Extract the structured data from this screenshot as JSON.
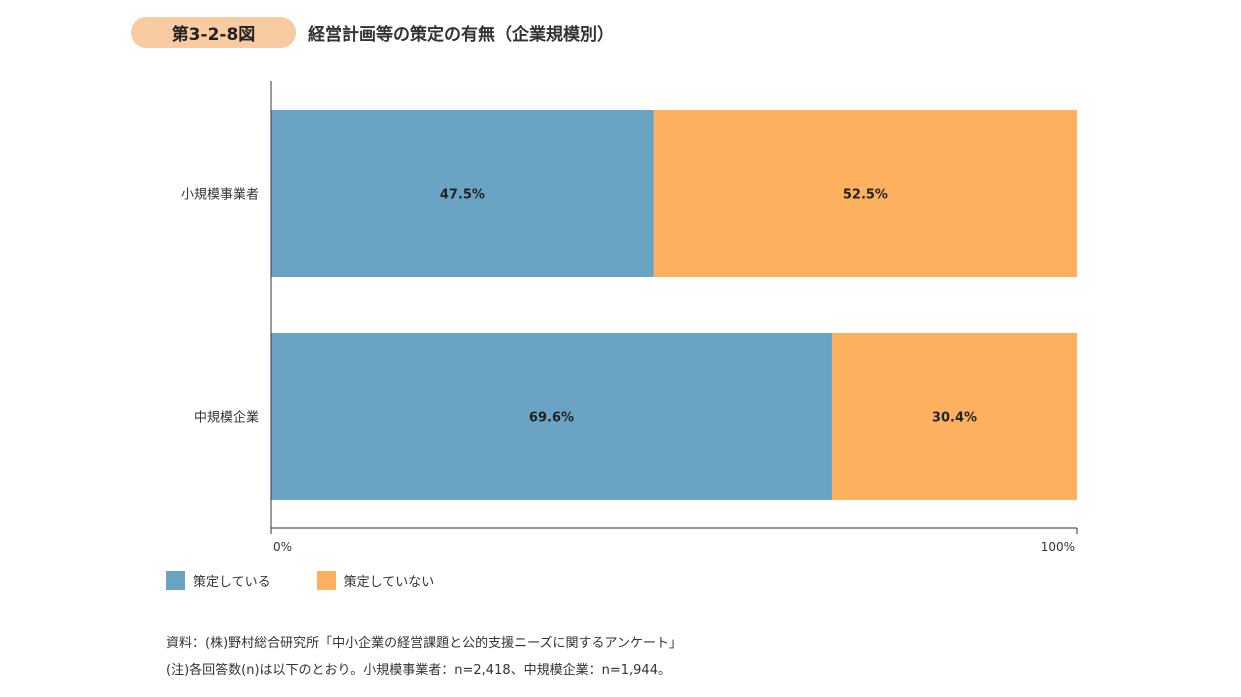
{
  "header": {
    "figure_number": "第3-2-8図",
    "title": "経営計画等の策定の有無（企業規模別）"
  },
  "chart_data": {
    "type": "bar",
    "orientation": "horizontal",
    "stacked": true,
    "percent": true,
    "categories": [
      "小規模事業者",
      "中規模企業"
    ],
    "series": [
      {
        "name": "策定している",
        "values": [
          47.5,
          69.6
        ],
        "labels": [
          "47.5%",
          "69.6%"
        ],
        "color": "#6ba3c4"
      },
      {
        "name": "策定していない",
        "values": [
          52.5,
          30.4
        ],
        "labels": [
          "52.5%",
          "30.4%"
        ],
        "color": "#fdb05e"
      }
    ],
    "xlim": [
      0,
      100
    ],
    "x_ticks": [
      "0%",
      "100%"
    ],
    "legend_position": "bottom-left",
    "grid": false
  },
  "notes": {
    "source": "資料：(株)野村総合研究所「中小企業の経営課題と公的支援ニーズに関するアンケート」",
    "note": "(注)各回答数(n)は以下のとおり。小規模事業者：n=2,418、中規模企業：n=1,944。"
  }
}
